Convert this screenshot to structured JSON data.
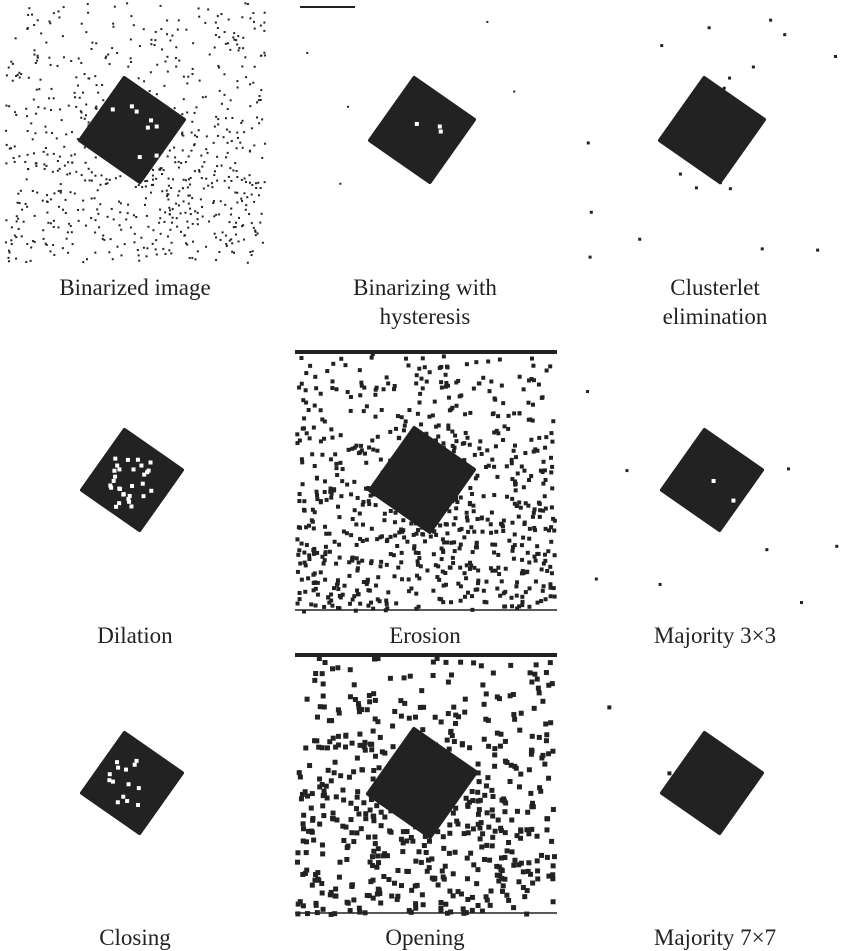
{
  "panels": [
    {
      "caption": [
        "Binarized image"
      ]
    },
    {
      "caption": [
        "Binarizing with",
        "hysteresis"
      ]
    },
    {
      "caption": [
        "Clusterlet",
        "elimination"
      ]
    },
    {
      "caption": [
        "Dilation"
      ]
    },
    {
      "caption": [
        "Erosion"
      ]
    },
    {
      "caption": [
        "Majority 3×3"
      ]
    },
    {
      "caption": [
        "Closing"
      ]
    },
    {
      "caption": [
        "Opening"
      ]
    },
    {
      "caption": [
        "Majority 7×7"
      ]
    }
  ]
}
